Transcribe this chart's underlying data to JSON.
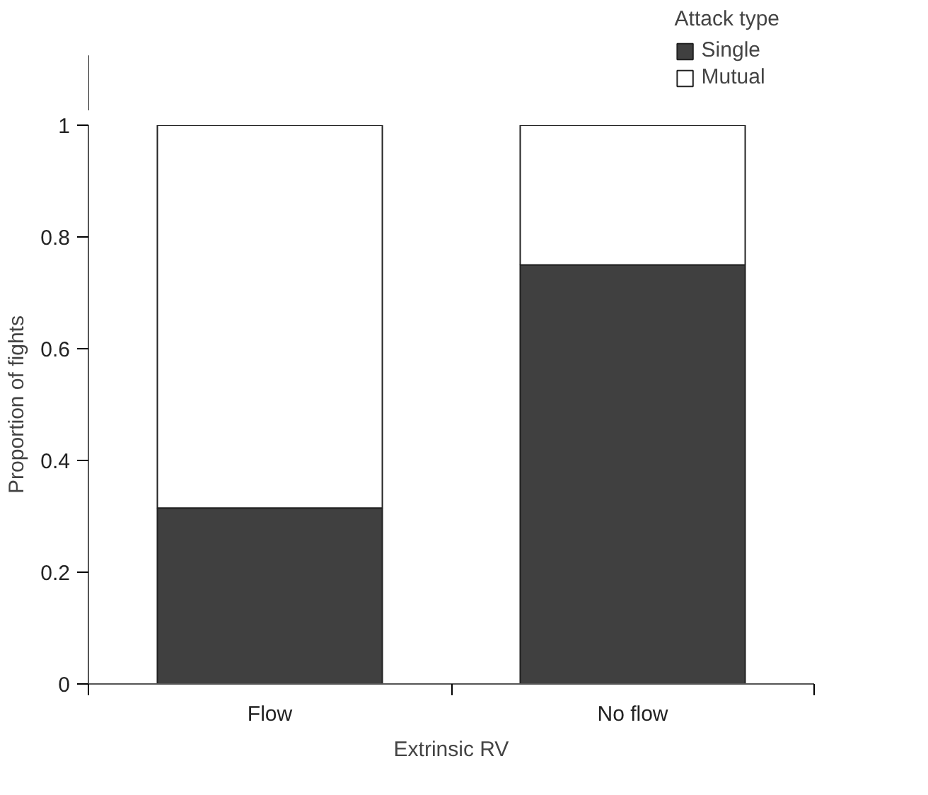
{
  "chart_data": {
    "type": "bar",
    "stacked": true,
    "xlabel": "Extrinsic RV",
    "ylabel": "Proportion of fights",
    "legend_title": "Attack type",
    "legend": "top right",
    "grid": false,
    "categories": [
      "Flow",
      "No flow"
    ],
    "series": [
      {
        "name": "Single",
        "color": "#404040",
        "values": [
          0.315,
          0.75
        ]
      },
      {
        "name": "Mutual",
        "color": "#ffffff",
        "values": [
          0.685,
          0.25
        ]
      }
    ],
    "ylim": [
      0,
      1.0
    ],
    "yticks": [
      0,
      0.2,
      0.4,
      0.6,
      0.8,
      1
    ]
  }
}
